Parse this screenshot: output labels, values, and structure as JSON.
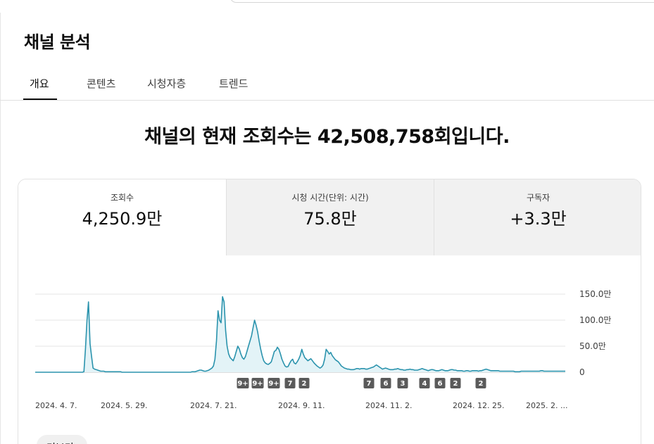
{
  "page": {
    "title": "채널 분석"
  },
  "tabs": [
    {
      "label": "개요",
      "active": true
    },
    {
      "label": "콘텐츠",
      "active": false
    },
    {
      "label": "시청자층",
      "active": false
    },
    {
      "label": "트렌드",
      "active": false
    }
  ],
  "headline": "채널의 현재 조회수는 42,508,758회입니다.",
  "metrics": [
    {
      "label": "조회수",
      "value": "4,250.9만"
    },
    {
      "label": "시청 시간(단위: 시간)",
      "value": "75.8만"
    },
    {
      "label": "구독자",
      "value": "+3.3만"
    }
  ],
  "more_button": "더보기",
  "colors": {
    "line": "#2a93ad",
    "fill": "#e3f3f7",
    "badge": "#5a5a5a",
    "grid": "#e6e6e6"
  },
  "chart_data": {
    "type": "area",
    "y_ticks": [
      "150.0만",
      "100.0만",
      "50.0만",
      "0"
    ],
    "ylim": [
      0,
      150
    ],
    "x_labels": [
      "2024. 4. 7.",
      "2024. 5. 29.",
      "2024. 7. 21.",
      "2024. 9. 11.",
      "2024. 11. 2.",
      "2024. 12. 25.",
      "2025. 2. ..."
    ],
    "series": [
      {
        "values": [
          0,
          0,
          0,
          0,
          0,
          0,
          0,
          0,
          0,
          0,
          0,
          0,
          0,
          0,
          0,
          0,
          0,
          0,
          0,
          0,
          0,
          0,
          0,
          0,
          0,
          0,
          0,
          0,
          0,
          0,
          0,
          0,
          1,
          45,
          100,
          135,
          55,
          30,
          8,
          6,
          5,
          4,
          3,
          2,
          2,
          2,
          1,
          1,
          1,
          1,
          1,
          1,
          1,
          1,
          1,
          1,
          1,
          0,
          0,
          0,
          0,
          0,
          0,
          0,
          0,
          0,
          0,
          0,
          0,
          0,
          0,
          0,
          0,
          0,
          0,
          0,
          0,
          0,
          0,
          0,
          0,
          0,
          0,
          0,
          0,
          0,
          0,
          0,
          0,
          0,
          0,
          0,
          0,
          0,
          0,
          0,
          0,
          0,
          0,
          0,
          0,
          0,
          0,
          1,
          1,
          1,
          2,
          3,
          4,
          4,
          3,
          2,
          2,
          3,
          4,
          6,
          8,
          12,
          25,
          60,
          118,
          100,
          95,
          145,
          135,
          80,
          50,
          35,
          28,
          25,
          22,
          30,
          40,
          50,
          45,
          35,
          28,
          25,
          30,
          40,
          50,
          60,
          70,
          85,
          100,
          90,
          78,
          60,
          45,
          32,
          22,
          18,
          16,
          15,
          17,
          20,
          30,
          40,
          42,
          48,
          44,
          35,
          25,
          18,
          12,
          10,
          11,
          17,
          22,
          25,
          18,
          16,
          20,
          25,
          32,
          44,
          35,
          28,
          25,
          22,
          24,
          26,
          22,
          18,
          15,
          12,
          10,
          8,
          10,
          14,
          25,
          44,
          40,
          35,
          38,
          32,
          28,
          24,
          22,
          20,
          16,
          12,
          10,
          8,
          7,
          6,
          6,
          5,
          5,
          5,
          6,
          7,
          7,
          6,
          7,
          7,
          7,
          6,
          6,
          7,
          8,
          9,
          10,
          12,
          14,
          12,
          10,
          8,
          6,
          7,
          8,
          7,
          6,
          5,
          5,
          5,
          6,
          6,
          7,
          6,
          5,
          5,
          4,
          4,
          5,
          5,
          6,
          5,
          5,
          4,
          4,
          4,
          5,
          6,
          7,
          6,
          5,
          4,
          3,
          4,
          5,
          5,
          4,
          3,
          3,
          3,
          4,
          5,
          4,
          3,
          3,
          3,
          4,
          5,
          5,
          4,
          4,
          3,
          3,
          3,
          3,
          2,
          2,
          3,
          3,
          2,
          2,
          3,
          3,
          3,
          3,
          2,
          3,
          3,
          4,
          5,
          6,
          5,
          4,
          3,
          3,
          3,
          3,
          3,
          3,
          2,
          2,
          2,
          2,
          2,
          2,
          2,
          2,
          2,
          2,
          1,
          1,
          1,
          1,
          2,
          2,
          2,
          2,
          2,
          2,
          2,
          2,
          2,
          2,
          2,
          2,
          2,
          3,
          3,
          2,
          2,
          2,
          2,
          2,
          2,
          2,
          2,
          2,
          2,
          2,
          2,
          2,
          2,
          2
        ]
      }
    ],
    "markers": [
      "9+",
      "9+",
      "9+",
      "7",
      "2",
      "7",
      "6",
      "3",
      "4",
      "6",
      "2",
      "2"
    ],
    "grid": true,
    "legend": "none"
  }
}
